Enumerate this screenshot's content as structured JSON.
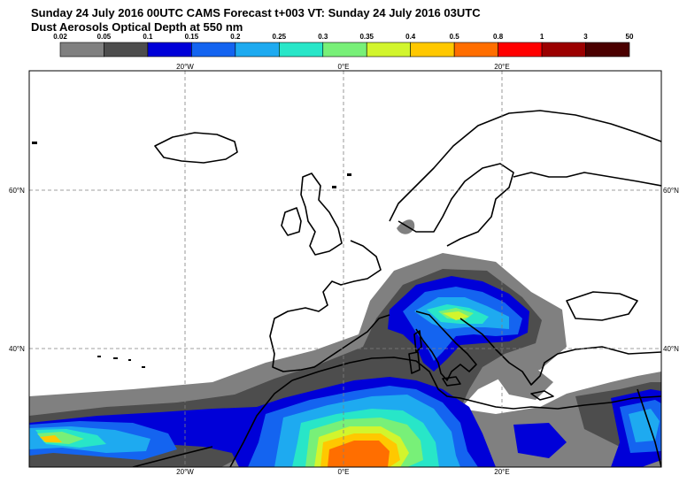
{
  "header": {
    "title_line1": "Sunday 24 July 2016 00UTC CAMS Forecast t+003 VT: Sunday 24 July 2016 03UTC",
    "title_line2": "Dust Aerosols Optical Depth at 550 nm"
  },
  "legend": {
    "labels": [
      "0.02",
      "0.05",
      "0.1",
      "0.15",
      "0.2",
      "0.25",
      "0.3",
      "0.35",
      "0.4",
      "0.5",
      "0.8",
      "1",
      "3",
      "50"
    ],
    "colors": [
      "#808080",
      "#4d4d4d",
      "#0000d8",
      "#1464f0",
      "#1eaaf0",
      "#28e6c8",
      "#78f078",
      "#d2f52d",
      "#ffc800",
      "#ff6e00",
      "#ff0000",
      "#9b0000",
      "#4b0000"
    ]
  },
  "map": {
    "lon_labels": [
      "20°W",
      "0°E",
      "20°E"
    ],
    "lat_labels": [
      "60°N",
      "40°N"
    ]
  }
}
